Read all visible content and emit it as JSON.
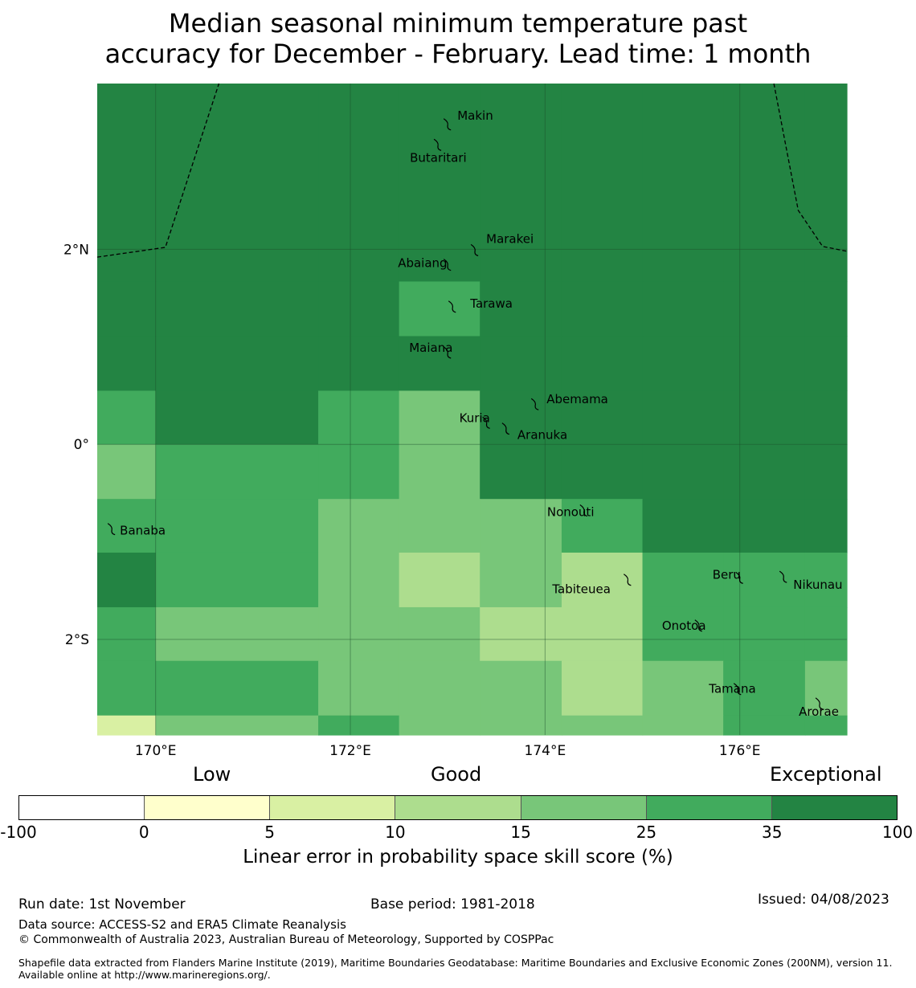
{
  "title": {
    "line1": "Median seasonal minimum temperature past",
    "line2": "accuracy for December - February. Lead time: 1 month"
  },
  "map": {
    "lon_range": [
      169.4,
      177.1
    ],
    "lat_range": [
      -2.98,
      3.7
    ],
    "lon_ticks": [
      {
        "value": 170,
        "label": "170°E"
      },
      {
        "value": 172,
        "label": "172°E"
      },
      {
        "value": 174,
        "label": "174°E"
      },
      {
        "value": 176,
        "label": "176°E"
      }
    ],
    "lat_ticks": [
      {
        "value": 2,
        "label": "2°N"
      },
      {
        "value": 0,
        "label": "0°"
      },
      {
        "value": -2,
        "label": "2°S"
      }
    ],
    "grid": {
      "lon_edges": [
        169.4,
        170.0,
        171.67,
        172.5,
        173.33,
        174.17,
        175.0,
        175.83,
        176.67,
        177.1
      ],
      "lat_edges": [
        3.7,
        1.67,
        1.11,
        0.55,
        0.0,
        -0.56,
        -1.11,
        -1.67,
        -2.22,
        -2.78,
        -2.98
      ],
      "skill_bin": [
        [
          6,
          6,
          6,
          6,
          6,
          6,
          6,
          6,
          6
        ],
        [
          6,
          6,
          6,
          5,
          6,
          6,
          6,
          6,
          6
        ],
        [
          6,
          6,
          6,
          6,
          6,
          6,
          6,
          6,
          6
        ],
        [
          5,
          6,
          5,
          4,
          6,
          6,
          6,
          6,
          6
        ],
        [
          4,
          5,
          5,
          4,
          6,
          6,
          6,
          6,
          6
        ],
        [
          5,
          5,
          4,
          4,
          4,
          5,
          6,
          6,
          6
        ],
        [
          6,
          5,
          4,
          3,
          4,
          3,
          5,
          5,
          5
        ],
        [
          5,
          4,
          4,
          4,
          3,
          3,
          5,
          5,
          5
        ],
        [
          5,
          5,
          4,
          4,
          4,
          3,
          4,
          5,
          4
        ],
        [
          2,
          4,
          5,
          4,
          4,
          4,
          4,
          5,
          5
        ]
      ]
    },
    "eez_boundaries": [
      [
        [
          169.4,
          1.92
        ],
        [
          170.1,
          2.02
        ],
        [
          170.65,
          3.7
        ]
      ],
      [
        [
          176.35,
          3.7
        ],
        [
          176.6,
          2.4
        ],
        [
          176.85,
          2.03
        ],
        [
          177.1,
          1.98
        ]
      ]
    ],
    "islands": [
      {
        "name": "Makin",
        "lon": 173.0,
        "lat": 3.29,
        "label": "Makin"
      },
      {
        "name": "Butaritari",
        "lon": 172.9,
        "lat": 3.08,
        "label": "Butaritari"
      },
      {
        "name": "Marakei",
        "lon": 173.28,
        "lat": 2.0,
        "label": "Marakei"
      },
      {
        "name": "Abaiang",
        "lon": 173.0,
        "lat": 1.85,
        "label": "Abaiang"
      },
      {
        "name": "Tarawa",
        "lon": 173.05,
        "lat": 1.42,
        "label": "Tarawa"
      },
      {
        "name": "Maiana",
        "lon": 173.0,
        "lat": 0.95,
        "label": "Maiana"
      },
      {
        "name": "Abemama",
        "lon": 173.9,
        "lat": 0.42,
        "label": "Abemama"
      },
      {
        "name": "Kuria",
        "lon": 173.4,
        "lat": 0.23,
        "label": "Kuria"
      },
      {
        "name": "Aranuka",
        "lon": 173.6,
        "lat": 0.17,
        "label": "Aranuka"
      },
      {
        "name": "Nonouti",
        "lon": 174.4,
        "lat": -0.67,
        "label": "Nonouti"
      },
      {
        "name": "Banaba",
        "lon": 169.55,
        "lat": -0.86,
        "label": "Banaba"
      },
      {
        "name": "Beru",
        "lon": 176.0,
        "lat": -1.36,
        "label": "Beru"
      },
      {
        "name": "Tabiteuea",
        "lon": 174.85,
        "lat": -1.38,
        "label": "Tabiteuea"
      },
      {
        "name": "Nikunau",
        "lon": 176.45,
        "lat": -1.35,
        "label": "Nikunau"
      },
      {
        "name": "Onotoa",
        "lon": 175.58,
        "lat": -1.85,
        "label": "Onotoa"
      },
      {
        "name": "Tamana",
        "lon": 175.98,
        "lat": -2.5,
        "label": "Tamana"
      },
      {
        "name": "Arorae",
        "lon": 176.82,
        "lat": -2.65,
        "label": "Arorae"
      }
    ]
  },
  "legend": {
    "category_labels": {
      "low": "Low",
      "good": "Good",
      "exceptional": "Exceptional"
    },
    "bins": [
      {
        "from": -100,
        "to": 0,
        "color": "#ffffff"
      },
      {
        "from": 0,
        "to": 5,
        "color": "#ffffcc"
      },
      {
        "from": 5,
        "to": 10,
        "color": "#d9f0a3"
      },
      {
        "from": 10,
        "to": 15,
        "color": "#addd8e"
      },
      {
        "from": 15,
        "to": 25,
        "color": "#78c679"
      },
      {
        "from": 25,
        "to": 35,
        "color": "#41ab5d"
      },
      {
        "from": 35,
        "to": 100,
        "color": "#238443"
      }
    ],
    "ticks": [
      "-100",
      "0",
      "5",
      "10",
      "15",
      "25",
      "35",
      "100"
    ],
    "title": "Linear error in probability space skill score (%)"
  },
  "footer": {
    "run_date": "Run date: 1st November",
    "base_period": "Base period: 1981-2018",
    "issued": "Issued: 04/08/2023",
    "data_source": "Data source: ACCESS-S2 and ERA5 Climate Reanalysis",
    "copyright": "© Commonwealth of Australia 2023, Australian Bureau of Meteorology, Supported by COSPPac",
    "shapefile": "Shapefile data extracted from Flanders Marine Institute (2019), Maritime Boundaries Geodatabase: Maritime Boundaries and Exclusive Economic Zones (200NM), version 11. Available online at http://www.marineregions.org/."
  }
}
